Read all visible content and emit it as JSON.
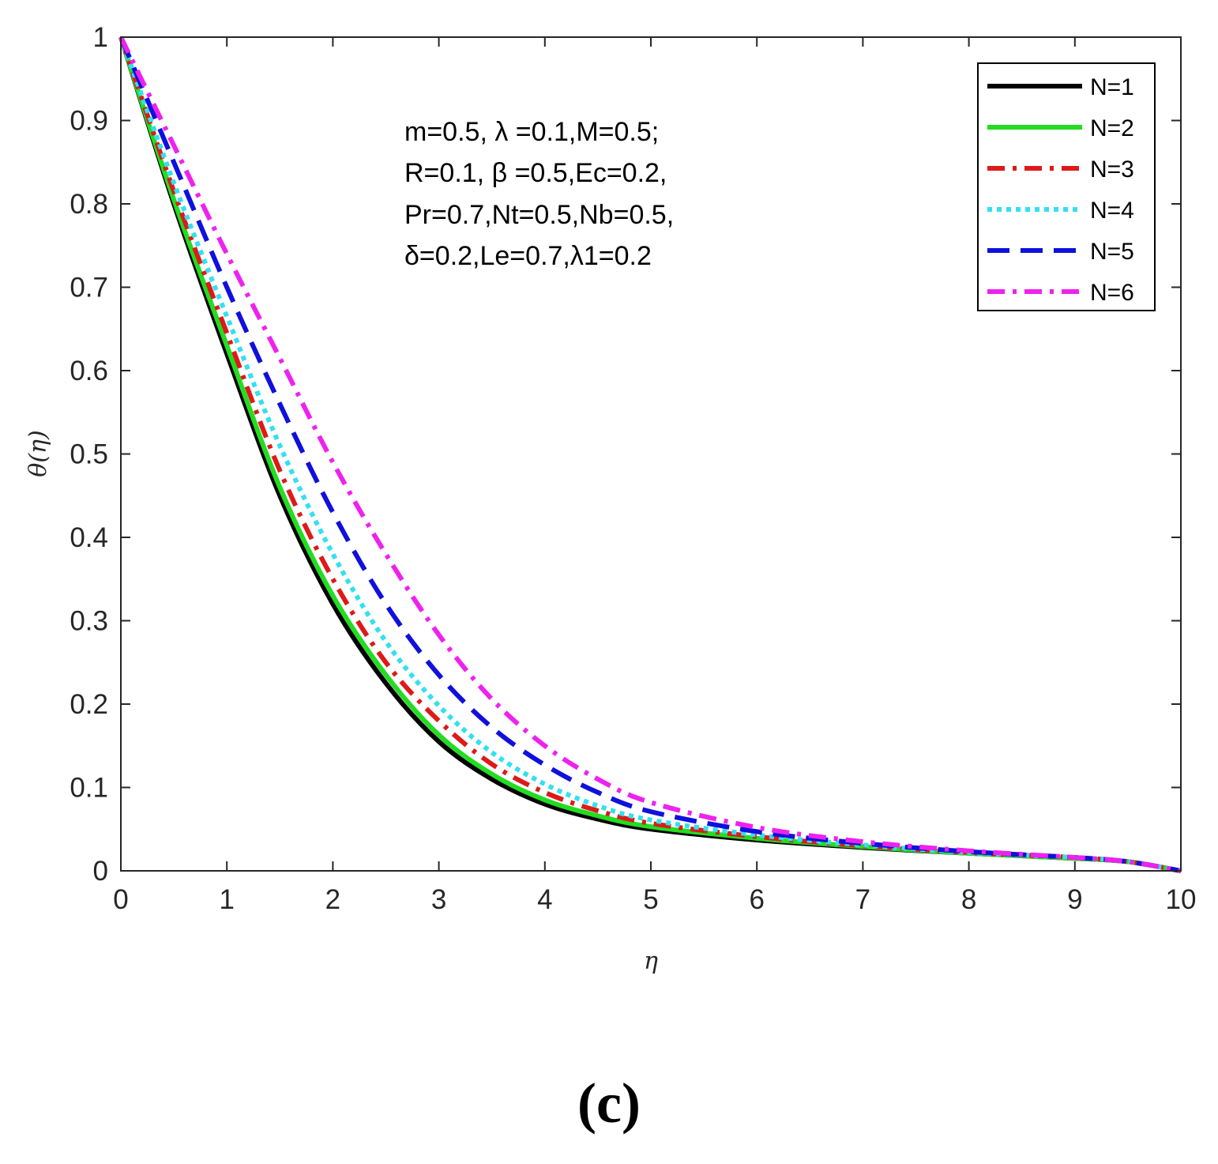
{
  "chart_data": {
    "type": "line",
    "xlabel": "η",
    "ylabel": "θ(η)",
    "xlim": [
      0,
      10
    ],
    "ylim": [
      0,
      1
    ],
    "xticks": [
      "0",
      "1",
      "2",
      "3",
      "4",
      "5",
      "6",
      "7",
      "8",
      "9",
      "10"
    ],
    "yticks": [
      "0",
      "0.1",
      "0.2",
      "0.3",
      "0.4",
      "0.5",
      "0.6",
      "0.7",
      "0.8",
      "0.9",
      "1"
    ],
    "grid": false,
    "legend_position": "top-right",
    "annotation_lines": [
      "m=0.5, λ =0.1,M=0.5;",
      "R=0.1, β =0.5,Ec=0.2,",
      "Pr=0.7,Nt=0.5,Nb=0.5,",
      "δ=0.2,Le=0.7,λ1=0.2"
    ],
    "x": [
      0,
      0.5,
      1,
      1.5,
      2,
      2.5,
      3,
      3.5,
      4,
      4.5,
      5,
      6,
      7,
      8,
      9,
      9.5,
      10
    ],
    "series": [
      {
        "name": "N=1",
        "color": "#000000",
        "dash": "solid",
        "values": [
          1.0,
          0.8,
          0.62,
          0.45,
          0.32,
          0.225,
          0.155,
          0.11,
          0.08,
          0.062,
          0.05,
          0.037,
          0.028,
          0.021,
          0.015,
          0.011,
          0.0
        ]
      },
      {
        "name": "N=2",
        "color": "#22dd22",
        "dash": "solid",
        "values": [
          1.0,
          0.805,
          0.63,
          0.46,
          0.33,
          0.235,
          0.163,
          0.116,
          0.085,
          0.066,
          0.053,
          0.039,
          0.029,
          0.021,
          0.015,
          0.011,
          0.0
        ]
      },
      {
        "name": "N=3",
        "color": "#dd1a1a",
        "dash": "dashdot",
        "values": [
          1.0,
          0.815,
          0.645,
          0.48,
          0.35,
          0.25,
          0.18,
          0.128,
          0.094,
          0.072,
          0.057,
          0.041,
          0.03,
          0.022,
          0.016,
          0.011,
          0.0
        ]
      },
      {
        "name": "N=4",
        "color": "#33e0f0",
        "dash": "dotted",
        "values": [
          1.0,
          0.825,
          0.665,
          0.51,
          0.38,
          0.275,
          0.198,
          0.142,
          0.104,
          0.078,
          0.061,
          0.043,
          0.031,
          0.022,
          0.016,
          0.011,
          0.0
        ]
      },
      {
        "name": "N=5",
        "color": "#1010dd",
        "dash": "dashed",
        "values": [
          1.0,
          0.85,
          0.7,
          0.56,
          0.43,
          0.32,
          0.235,
          0.172,
          0.127,
          0.094,
          0.071,
          0.047,
          0.033,
          0.023,
          0.016,
          0.011,
          0.0
        ]
      },
      {
        "name": "N=6",
        "color": "#ee22ee",
        "dash": "dashdot",
        "values": [
          1.0,
          0.87,
          0.74,
          0.615,
          0.49,
          0.38,
          0.283,
          0.206,
          0.15,
          0.11,
          0.082,
          0.052,
          0.035,
          0.024,
          0.016,
          0.011,
          0.0
        ]
      }
    ]
  },
  "panel_label": "(c)"
}
